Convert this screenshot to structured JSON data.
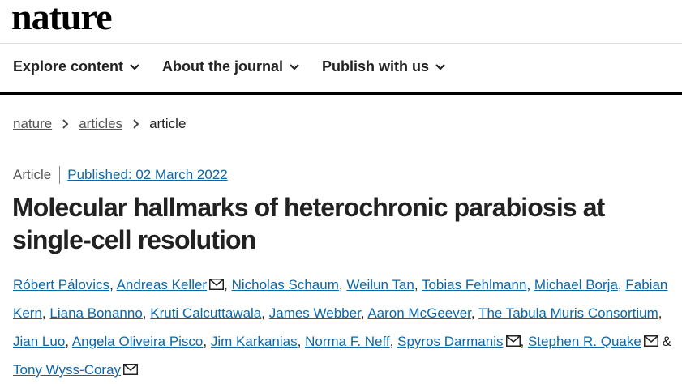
{
  "header": {
    "logo": "nature"
  },
  "nav": {
    "items": [
      "Explore content",
      "About the journal",
      "Publish with us"
    ]
  },
  "breadcrumb": {
    "items": [
      "nature",
      "articles",
      "article"
    ]
  },
  "article": {
    "type": "Article",
    "published": "Published: 02 March 2022",
    "title": "Molecular hallmarks of heterochronic parabiosis at single-cell resolution",
    "separator": ",",
    "conjunction": "&",
    "authors": [
      {
        "name": "Róbert Pálovics",
        "mail": false
      },
      {
        "name": "Andreas Keller",
        "mail": true
      },
      {
        "name": "Nicholas Schaum",
        "mail": false
      },
      {
        "name": "Weilun Tan",
        "mail": false
      },
      {
        "name": "Tobias Fehlmann",
        "mail": false
      },
      {
        "name": "Michael Borja",
        "mail": false
      },
      {
        "name": "Fabian Kern",
        "mail": false
      },
      {
        "name": "Liana Bonanno",
        "mail": false
      },
      {
        "name": "Kruti Calcuttawala",
        "mail": false
      },
      {
        "name": "James Webber",
        "mail": false
      },
      {
        "name": "Aaron McGeever",
        "mail": false
      },
      {
        "name": "The Tabula Muris Consortium",
        "mail": false
      },
      {
        "name": "Jian Luo",
        "mail": false
      },
      {
        "name": "Angela Oliveira Pisco",
        "mail": false
      },
      {
        "name": "Jim Karkanias",
        "mail": false
      },
      {
        "name": "Norma F. Neff",
        "mail": false
      },
      {
        "name": "Spyros Darmanis",
        "mail": true
      },
      {
        "name": "Stephen R. Quake",
        "mail": true
      },
      {
        "name": "Tony Wyss-Coray",
        "mail": true
      }
    ]
  }
}
